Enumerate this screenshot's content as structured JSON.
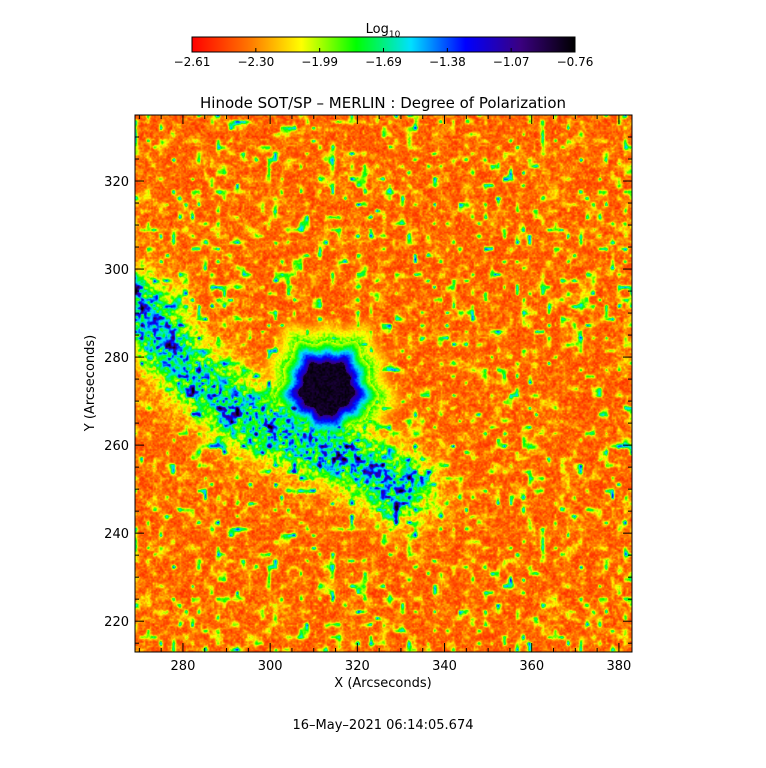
{
  "chart_data": {
    "type": "heatmap",
    "title": "Hinode SOT/SP – MERLIN : Degree of Polarization",
    "xlabel": "X (Arcseconds)",
    "ylabel": "Y (Arcseconds)",
    "xlim": [
      269,
      383
    ],
    "ylim": [
      213,
      335
    ],
    "xticks": [
      280,
      300,
      320,
      340,
      360,
      380
    ],
    "yticks": [
      220,
      240,
      260,
      280,
      300,
      320
    ],
    "colorbar": {
      "label_base": "Log",
      "label_sub": "10",
      "range": [
        -2.61,
        -0.76
      ],
      "ticks": [
        "−2.61",
        "−2.30",
        "−1.99",
        "−1.69",
        "−1.38",
        "−1.07",
        "−0.76"
      ],
      "stops": [
        "#ff0000",
        "#ff7000",
        "#ffff00",
        "#00ff00",
        "#00e0ff",
        "#0000ff",
        "#3a0080",
        "#000000"
      ]
    },
    "features": {
      "sunspot_center": [
        313,
        273
      ],
      "umbra_radius": 6,
      "penumbra_radius": 11,
      "plage_band": [
        [
          269,
          292
        ],
        [
          280,
          278
        ],
        [
          292,
          268
        ],
        [
          305,
          262
        ],
        [
          318,
          257
        ],
        [
          330,
          250
        ]
      ]
    },
    "timestamp": "16–May–2021 06:14:05.674"
  }
}
